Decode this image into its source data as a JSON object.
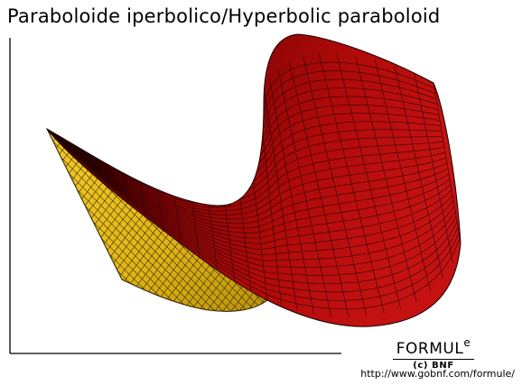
{
  "title": "Paraboloide iperbolico/Hyperbolic paraboloid",
  "logo": {
    "word": "FORMUL",
    "superscript": "e",
    "subtitle": "(c) BNF"
  },
  "url": "http://www.gobnf.com/formule/",
  "colors": {
    "upper_surface": "#b00a0a",
    "upper_surface_dark": "#3e0000",
    "lower_surface": "#e0b416",
    "lower_surface_dark": "#8a6e08",
    "mesh": "#1a0000",
    "axes": "#000000"
  },
  "surface": {
    "type": "hyperbolic-paraboloid",
    "mesh_u_divisions": 26,
    "mesh_v_divisions": 30
  }
}
